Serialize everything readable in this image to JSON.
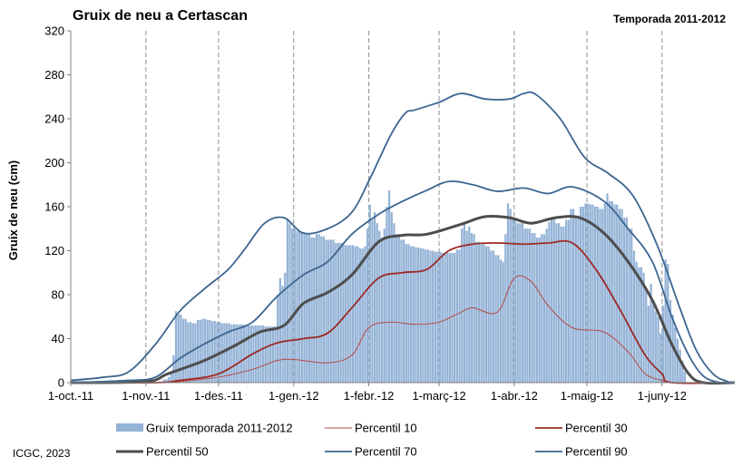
{
  "chart_data": {
    "type": "bar+line",
    "title": "Gruix de neu a Certascan",
    "subtitle": "Temporada 2011-2012",
    "ylabel": "Gruix de neu (cm)",
    "ylim": [
      0,
      320
    ],
    "yticks": [
      "0",
      "40",
      "80",
      "120",
      "160",
      "200",
      "240",
      "280",
      "320"
    ],
    "x_domain": [
      "2011-10-01",
      "2012-07-01"
    ],
    "x_ticks": [
      {
        "date": "2011-10-01",
        "label": "1-oct.-11"
      },
      {
        "date": "2011-11-01",
        "label": "1-nov.-11"
      },
      {
        "date": "2011-12-01",
        "label": "1-des.-11"
      },
      {
        "date": "2012-01-01",
        "label": "1-gen.-12"
      },
      {
        "date": "2012-02-01",
        "label": "1-febr.-12"
      },
      {
        "date": "2012-03-01",
        "label": "1-març-12"
      },
      {
        "date": "2012-04-01",
        "label": "1-abr.-12"
      },
      {
        "date": "2012-05-01",
        "label": "1-maig-12"
      },
      {
        "date": "2012-06-01",
        "label": "1-juny-12"
      }
    ],
    "grid": {
      "vertical": true,
      "horizontal": false
    },
    "legend": {
      "position": "bottom",
      "items": [
        {
          "label": "Gruix temporada 2011-2012",
          "color": "#95b3d7",
          "kind": "bar"
        },
        {
          "label": "Percentil 10",
          "color": "#b44a45",
          "kind": "line"
        },
        {
          "label": "Percentil 30",
          "color": "#9c2a26",
          "kind": "line"
        },
        {
          "label": "Percentil 50",
          "color": "#4d4d4d",
          "kind": "line"
        },
        {
          "label": "Percentil 70",
          "color": "#3b6591",
          "kind": "line"
        },
        {
          "label": "Percentil 90",
          "color": "#3b6591",
          "kind": "line"
        }
      ]
    },
    "bars": {
      "name": "Gruix temporada 2011-2012",
      "color": "#95b3d7",
      "points": [
        [
          "2011-10-01",
          0
        ],
        [
          "2011-11-07",
          0
        ],
        [
          "2011-11-08",
          3
        ],
        [
          "2011-11-10",
          5
        ],
        [
          "2011-11-11",
          8
        ],
        [
          "2011-11-12",
          25
        ],
        [
          "2011-11-13",
          65
        ],
        [
          "2011-11-14",
          62
        ],
        [
          "2011-11-16",
          58
        ],
        [
          "2011-11-18",
          55
        ],
        [
          "2011-11-20",
          54
        ],
        [
          "2011-11-22",
          57
        ],
        [
          "2011-11-24",
          58
        ],
        [
          "2011-11-26",
          57
        ],
        [
          "2011-11-28",
          56
        ],
        [
          "2011-11-30",
          55
        ],
        [
          "2011-12-02",
          54
        ],
        [
          "2011-12-06",
          53
        ],
        [
          "2011-12-12",
          52
        ],
        [
          "2011-12-20",
          51
        ],
        [
          "2011-12-24",
          51
        ],
        [
          "2011-12-25",
          80
        ],
        [
          "2011-12-26",
          95
        ],
        [
          "2011-12-27",
          88
        ],
        [
          "2011-12-28",
          100
        ],
        [
          "2011-12-29",
          148
        ],
        [
          "2011-12-30",
          145
        ],
        [
          "2011-12-31",
          140
        ],
        [
          "2012-01-02",
          138
        ],
        [
          "2012-01-04",
          137
        ],
        [
          "2012-01-06",
          135
        ],
        [
          "2012-01-08",
          132
        ],
        [
          "2012-01-10",
          135
        ],
        [
          "2012-01-12",
          133
        ],
        [
          "2012-01-14",
          130
        ],
        [
          "2012-01-18",
          127
        ],
        [
          "2012-01-22",
          125
        ],
        [
          "2012-01-26",
          124
        ],
        [
          "2012-01-28",
          122
        ],
        [
          "2012-01-30",
          124
        ],
        [
          "2012-01-31",
          140
        ],
        [
          "2012-02-01",
          162
        ],
        [
          "2012-02-02",
          148
        ],
        [
          "2012-02-03",
          155
        ],
        [
          "2012-02-04",
          145
        ],
        [
          "2012-02-05",
          138
        ],
        [
          "2012-02-06",
          132
        ],
        [
          "2012-02-07",
          140
        ],
        [
          "2012-02-08",
          160
        ],
        [
          "2012-02-09",
          175
        ],
        [
          "2012-02-10",
          155
        ],
        [
          "2012-02-11",
          145
        ],
        [
          "2012-02-12",
          135
        ],
        [
          "2012-02-14",
          130
        ],
        [
          "2012-02-16",
          126
        ],
        [
          "2012-02-18",
          124
        ],
        [
          "2012-02-20",
          123
        ],
        [
          "2012-02-22",
          122
        ],
        [
          "2012-02-24",
          121
        ],
        [
          "2012-02-26",
          120
        ],
        [
          "2012-02-28",
          119
        ],
        [
          "2012-03-02",
          118
        ],
        [
          "2012-03-05",
          118
        ],
        [
          "2012-03-08",
          121
        ],
        [
          "2012-03-10",
          140
        ],
        [
          "2012-03-11",
          145
        ],
        [
          "2012-03-12",
          138
        ],
        [
          "2012-03-13",
          142
        ],
        [
          "2012-03-14",
          136
        ],
        [
          "2012-03-15",
          135
        ],
        [
          "2012-03-16",
          128
        ],
        [
          "2012-03-18",
          126
        ],
        [
          "2012-03-20",
          124
        ],
        [
          "2012-03-22",
          120
        ],
        [
          "2012-03-24",
          116
        ],
        [
          "2012-03-26",
          112
        ],
        [
          "2012-03-27",
          110
        ],
        [
          "2012-03-28",
          135
        ],
        [
          "2012-03-29",
          163
        ],
        [
          "2012-03-30",
          158
        ],
        [
          "2012-03-31",
          150
        ],
        [
          "2012-04-02",
          145
        ],
        [
          "2012-04-05",
          140
        ],
        [
          "2012-04-08",
          136
        ],
        [
          "2012-04-10",
          132
        ],
        [
          "2012-04-12",
          135
        ],
        [
          "2012-04-14",
          140
        ],
        [
          "2012-04-15",
          146
        ],
        [
          "2012-04-16",
          150
        ],
        [
          "2012-04-18",
          145
        ],
        [
          "2012-04-20",
          142
        ],
        [
          "2012-04-22",
          148
        ],
        [
          "2012-04-24",
          158
        ],
        [
          "2012-04-26",
          152
        ],
        [
          "2012-04-28",
          160
        ],
        [
          "2012-04-30",
          163
        ],
        [
          "2012-05-02",
          162
        ],
        [
          "2012-05-04",
          160
        ],
        [
          "2012-05-06",
          158
        ],
        [
          "2012-05-08",
          163
        ],
        [
          "2012-05-09",
          172
        ],
        [
          "2012-05-10",
          165
        ],
        [
          "2012-05-12",
          162
        ],
        [
          "2012-05-14",
          158
        ],
        [
          "2012-05-16",
          150
        ],
        [
          "2012-05-18",
          140
        ],
        [
          "2012-05-20",
          120
        ],
        [
          "2012-05-21",
          110
        ],
        [
          "2012-05-22",
          105
        ],
        [
          "2012-05-24",
          100
        ],
        [
          "2012-05-25",
          85
        ],
        [
          "2012-05-26",
          70
        ],
        [
          "2012-05-27",
          90
        ],
        [
          "2012-05-28",
          75
        ],
        [
          "2012-05-29",
          65
        ],
        [
          "2012-05-30",
          60
        ],
        [
          "2012-05-31",
          45
        ],
        [
          "2012-06-01",
          70
        ],
        [
          "2012-06-02",
          112
        ],
        [
          "2012-06-03",
          108
        ],
        [
          "2012-06-04",
          75
        ],
        [
          "2012-06-05",
          62
        ],
        [
          "2012-06-06",
          50
        ],
        [
          "2012-06-07",
          40
        ],
        [
          "2012-06-08",
          30
        ],
        [
          "2012-06-09",
          20
        ],
        [
          "2012-06-10",
          10
        ],
        [
          "2012-06-11",
          0
        ]
      ]
    },
    "series": [
      {
        "name": "Percentil 10",
        "color": "#b44a45",
        "width": 1.0,
        "points": [
          [
            "2011-10-01",
            0
          ],
          [
            "2011-11-05",
            0
          ],
          [
            "2011-11-15",
            1
          ],
          [
            "2011-12-01",
            5
          ],
          [
            "2011-12-15",
            12
          ],
          [
            "2011-12-25",
            20
          ],
          [
            "2012-01-01",
            21
          ],
          [
            "2012-01-15",
            18
          ],
          [
            "2012-01-25",
            25
          ],
          [
            "2012-02-01",
            50
          ],
          [
            "2012-02-10",
            55
          ],
          [
            "2012-02-20",
            53
          ],
          [
            "2012-03-01",
            55
          ],
          [
            "2012-03-10",
            64
          ],
          [
            "2012-03-15",
            68
          ],
          [
            "2012-03-25",
            64
          ],
          [
            "2012-04-01",
            95
          ],
          [
            "2012-04-08",
            92
          ],
          [
            "2012-04-15",
            70
          ],
          [
            "2012-04-25",
            50
          ],
          [
            "2012-05-08",
            46
          ],
          [
            "2012-05-18",
            28
          ],
          [
            "2012-05-25",
            8
          ],
          [
            "2012-06-01",
            2
          ],
          [
            "2012-06-05",
            0
          ],
          [
            "2012-07-01",
            0
          ]
        ]
      },
      {
        "name": "Percentil 30",
        "color": "#9c2a26",
        "width": 1.8,
        "points": [
          [
            "2011-10-01",
            0
          ],
          [
            "2011-11-05",
            0
          ],
          [
            "2011-11-15",
            2
          ],
          [
            "2011-12-01",
            8
          ],
          [
            "2011-12-15",
            26
          ],
          [
            "2011-12-25",
            36
          ],
          [
            "2012-01-05",
            40
          ],
          [
            "2012-01-15",
            45
          ],
          [
            "2012-01-25",
            68
          ],
          [
            "2012-02-05",
            95
          ],
          [
            "2012-02-15",
            100
          ],
          [
            "2012-02-25",
            103
          ],
          [
            "2012-03-05",
            120
          ],
          [
            "2012-03-15",
            126
          ],
          [
            "2012-03-25",
            127
          ],
          [
            "2012-04-05",
            126
          ],
          [
            "2012-04-15",
            127
          ],
          [
            "2012-04-25",
            127
          ],
          [
            "2012-05-05",
            102
          ],
          [
            "2012-05-15",
            65
          ],
          [
            "2012-05-25",
            25
          ],
          [
            "2012-06-01",
            8
          ],
          [
            "2012-06-05",
            0
          ],
          [
            "2012-07-01",
            0
          ]
        ]
      },
      {
        "name": "Percentil 50",
        "color": "#4d4d4d",
        "width": 3.0,
        "points": [
          [
            "2011-10-01",
            0
          ],
          [
            "2011-11-01",
            1
          ],
          [
            "2011-11-10",
            8
          ],
          [
            "2011-11-25",
            20
          ],
          [
            "2011-12-08",
            34
          ],
          [
            "2011-12-18",
            46
          ],
          [
            "2011-12-28",
            52
          ],
          [
            "2012-01-05",
            72
          ],
          [
            "2012-01-15",
            82
          ],
          [
            "2012-01-25",
            98
          ],
          [
            "2012-02-05",
            128
          ],
          [
            "2012-02-15",
            134
          ],
          [
            "2012-02-25",
            135
          ],
          [
            "2012-03-10",
            144
          ],
          [
            "2012-03-20",
            151
          ],
          [
            "2012-03-30",
            150
          ],
          [
            "2012-04-08",
            145
          ],
          [
            "2012-04-18",
            150
          ],
          [
            "2012-04-28",
            150
          ],
          [
            "2012-05-08",
            136
          ],
          [
            "2012-05-18",
            110
          ],
          [
            "2012-05-28",
            75
          ],
          [
            "2012-06-05",
            35
          ],
          [
            "2012-06-12",
            8
          ],
          [
            "2012-06-18",
            0
          ],
          [
            "2012-07-01",
            0
          ]
        ]
      },
      {
        "name": "Percentil 70",
        "color": "#3b6591",
        "width": 1.8,
        "points": [
          [
            "2011-10-01",
            0
          ],
          [
            "2011-10-25",
            2
          ],
          [
            "2011-11-05",
            5
          ],
          [
            "2011-11-15",
            22
          ],
          [
            "2011-11-25",
            35
          ],
          [
            "2011-12-05",
            46
          ],
          [
            "2011-12-15",
            55
          ],
          [
            "2011-12-25",
            78
          ],
          [
            "2012-01-05",
            98
          ],
          [
            "2012-01-15",
            110
          ],
          [
            "2012-01-25",
            135
          ],
          [
            "2012-02-05",
            153
          ],
          [
            "2012-02-15",
            165
          ],
          [
            "2012-02-25",
            175
          ],
          [
            "2012-03-05",
            183
          ],
          [
            "2012-03-15",
            180
          ],
          [
            "2012-03-25",
            174
          ],
          [
            "2012-04-05",
            177
          ],
          [
            "2012-04-15",
            172
          ],
          [
            "2012-04-25",
            178
          ],
          [
            "2012-05-08",
            165
          ],
          [
            "2012-05-18",
            140
          ],
          [
            "2012-05-28",
            110
          ],
          [
            "2012-06-05",
            60
          ],
          [
            "2012-06-12",
            25
          ],
          [
            "2012-06-18",
            6
          ],
          [
            "2012-06-25",
            0
          ],
          [
            "2012-07-01",
            0
          ]
        ]
      },
      {
        "name": "Percentil 90",
        "color": "#3b6591",
        "width": 1.8,
        "points": [
          [
            "2011-10-01",
            2
          ],
          [
            "2011-10-15",
            5
          ],
          [
            "2011-10-25",
            10
          ],
          [
            "2011-11-05",
            35
          ],
          [
            "2011-11-15",
            65
          ],
          [
            "2011-11-25",
            85
          ],
          [
            "2011-12-05",
            103
          ],
          [
            "2011-12-12",
            122
          ],
          [
            "2011-12-20",
            145
          ],
          [
            "2011-12-28",
            150
          ],
          [
            "2012-01-05",
            136
          ],
          [
            "2012-01-15",
            140
          ],
          [
            "2012-01-25",
            155
          ],
          [
            "2012-02-02",
            188
          ],
          [
            "2012-02-10",
            225
          ],
          [
            "2012-02-16",
            245
          ],
          [
            "2012-02-20",
            248
          ],
          [
            "2012-03-01",
            255
          ],
          [
            "2012-03-10",
            263
          ],
          [
            "2012-03-20",
            258
          ],
          [
            "2012-03-30",
            258
          ],
          [
            "2012-04-05",
            263
          ],
          [
            "2012-04-10",
            262
          ],
          [
            "2012-04-20",
            240
          ],
          [
            "2012-04-30",
            205
          ],
          [
            "2012-05-10",
            190
          ],
          [
            "2012-05-20",
            170
          ],
          [
            "2012-05-30",
            125
          ],
          [
            "2012-06-08",
            70
          ],
          [
            "2012-06-15",
            30
          ],
          [
            "2012-06-22",
            8
          ],
          [
            "2012-06-28",
            1
          ],
          [
            "2012-07-01",
            0
          ]
        ]
      }
    ]
  },
  "credit": "ICGC, 2023"
}
